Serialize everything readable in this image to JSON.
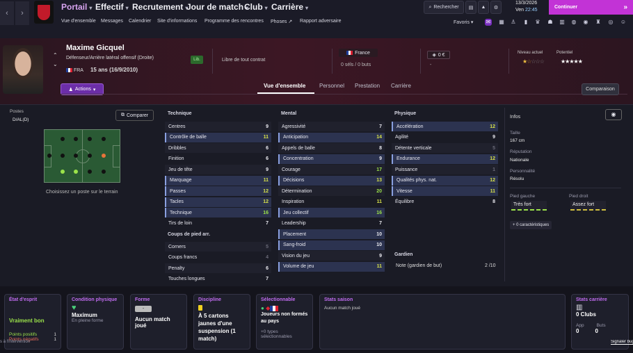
{
  "nav": {
    "menus": [
      "Portail",
      "Effectif",
      "Recrutement",
      "Jour de match",
      "Club",
      "Carrière"
    ],
    "sub": [
      "Vue d'ensemble",
      "Messages",
      "Calendrier",
      "Site d'informations",
      "Programme des rencontres",
      "Phoses",
      "Rapport adversaire"
    ],
    "search": "Rechercher",
    "date": "13/3/2026",
    "day": "Ven",
    "time": "22:45",
    "continue": "Continuer",
    "favoris": "Favoris"
  },
  "player": {
    "name": "Maxime Gicquel",
    "role": "Défenseur/Arrière latéral offensif (Droite)",
    "nation": "FRA",
    "age": "15 ans (16/9/2010)",
    "status": "Lib.",
    "contract": "Libre de tout contrat",
    "country": "France",
    "caps": "0 séls / 0 buts",
    "value": "0 €",
    "value_sub": "-",
    "current_label": "Niveau actuel",
    "potential_label": "Potentiel",
    "current_stars": 1.5,
    "potential_stars": 5,
    "actions": "Actions"
  },
  "tabs": [
    "Vue d'ensemble",
    "Personnel",
    "Prestation",
    "Carrière"
  ],
  "compare_top": "Comparaison",
  "positions": {
    "label": "Postes",
    "value": "D/AL(D)",
    "compare": "Comparer",
    "hint": "Choisissez un poste sur le terrain"
  },
  "technique": {
    "title": "Technique",
    "items": [
      {
        "name": "Centres",
        "v": "9"
      },
      {
        "name": "Contrôle de balle",
        "v": "11"
      },
      {
        "name": "Dribbles",
        "v": "6"
      },
      {
        "name": "Finition",
        "v": "6"
      },
      {
        "name": "Jeu de tête",
        "v": "9"
      },
      {
        "name": "Marquage",
        "v": "11"
      },
      {
        "name": "Passes",
        "v": "12"
      },
      {
        "name": "Tacles",
        "v": "12"
      },
      {
        "name": "Technique",
        "v": "16"
      },
      {
        "name": "Tirs de loin",
        "v": "7"
      }
    ]
  },
  "setpieces": {
    "title": "Coups de pied arr.",
    "items": [
      {
        "name": "Corners",
        "v": "5"
      },
      {
        "name": "Coups francs",
        "v": "4"
      },
      {
        "name": "Penalty",
        "v": "6"
      },
      {
        "name": "Touches longues",
        "v": "7"
      }
    ]
  },
  "mental": {
    "title": "Mental",
    "items": [
      {
        "name": "Agressivité",
        "v": "7"
      },
      {
        "name": "Anticipation",
        "v": "14"
      },
      {
        "name": "Appels de balle",
        "v": "8"
      },
      {
        "name": "Concentration",
        "v": "9"
      },
      {
        "name": "Courage",
        "v": "17"
      },
      {
        "name": "Décisions",
        "v": "13"
      },
      {
        "name": "Détermination",
        "v": "20"
      },
      {
        "name": "Inspiration",
        "v": "11"
      },
      {
        "name": "Jeu collectif",
        "v": "16"
      },
      {
        "name": "Leadership",
        "v": "7"
      },
      {
        "name": "Placement",
        "v": "10"
      },
      {
        "name": "Sang-froid",
        "v": "10"
      },
      {
        "name": "Vision du jeu",
        "v": "9"
      },
      {
        "name": "Volume de jeu",
        "v": "11"
      }
    ]
  },
  "physique": {
    "title": "Physique",
    "items": [
      {
        "name": "Accélération",
        "v": "12"
      },
      {
        "name": "Agilité",
        "v": "9"
      },
      {
        "name": "Détente verticale",
        "v": "5"
      },
      {
        "name": "Endurance",
        "v": "12"
      },
      {
        "name": "Puissance",
        "v": "1"
      },
      {
        "name": "Qualités phys. nat.",
        "v": "12"
      },
      {
        "name": "Vitesse",
        "v": "11"
      },
      {
        "name": "Équilibre",
        "v": "8"
      }
    ]
  },
  "gardien": {
    "title": "Gardien",
    "label": "Note (gardien de but)",
    "v": "2 /10"
  },
  "infos": {
    "title": "Infos",
    "taille_l": "Taille",
    "taille": "167 cm",
    "rep_l": "Réputation",
    "rep": "Nationale",
    "pers_l": "Personnalité",
    "pers": "Résolu",
    "pg_l": "Pied gauche",
    "pg": "Très fort",
    "pd_l": "Pied droit",
    "pd": "Assez fort",
    "traits": "0 caractéristiques"
  },
  "cards": {
    "etat": {
      "title": "État d'esprit",
      "value": "Vraiment bon",
      "l1": "Points positifs",
      "v1": "1",
      "l2": "Points négatifs",
      "v2": "1",
      "extra": "s à l'intervention"
    },
    "cond": {
      "title": "Condition physique",
      "value": "Maximum",
      "sub": "En pleine forme"
    },
    "forme": {
      "title": "Forme",
      "badge": "-",
      "value": "Aucun match joué"
    },
    "disc": {
      "title": "Discipline",
      "value": "À 5 cartons jaunes d'une suspension (1 match)"
    },
    "sel": {
      "title": "Sélectionnable",
      "value": "Joueurs non formés au pays",
      "sub": "+0 types sélectionnables"
    },
    "season": {
      "title": "Stats saison",
      "value": "Aucun match joué"
    },
    "career": {
      "title": "Stats carrière",
      "value": "0 Clubs",
      "l1": "App",
      "v1": "0",
      "l2": "Buts",
      "v2": "0",
      "link": "Signaler bug"
    }
  }
}
